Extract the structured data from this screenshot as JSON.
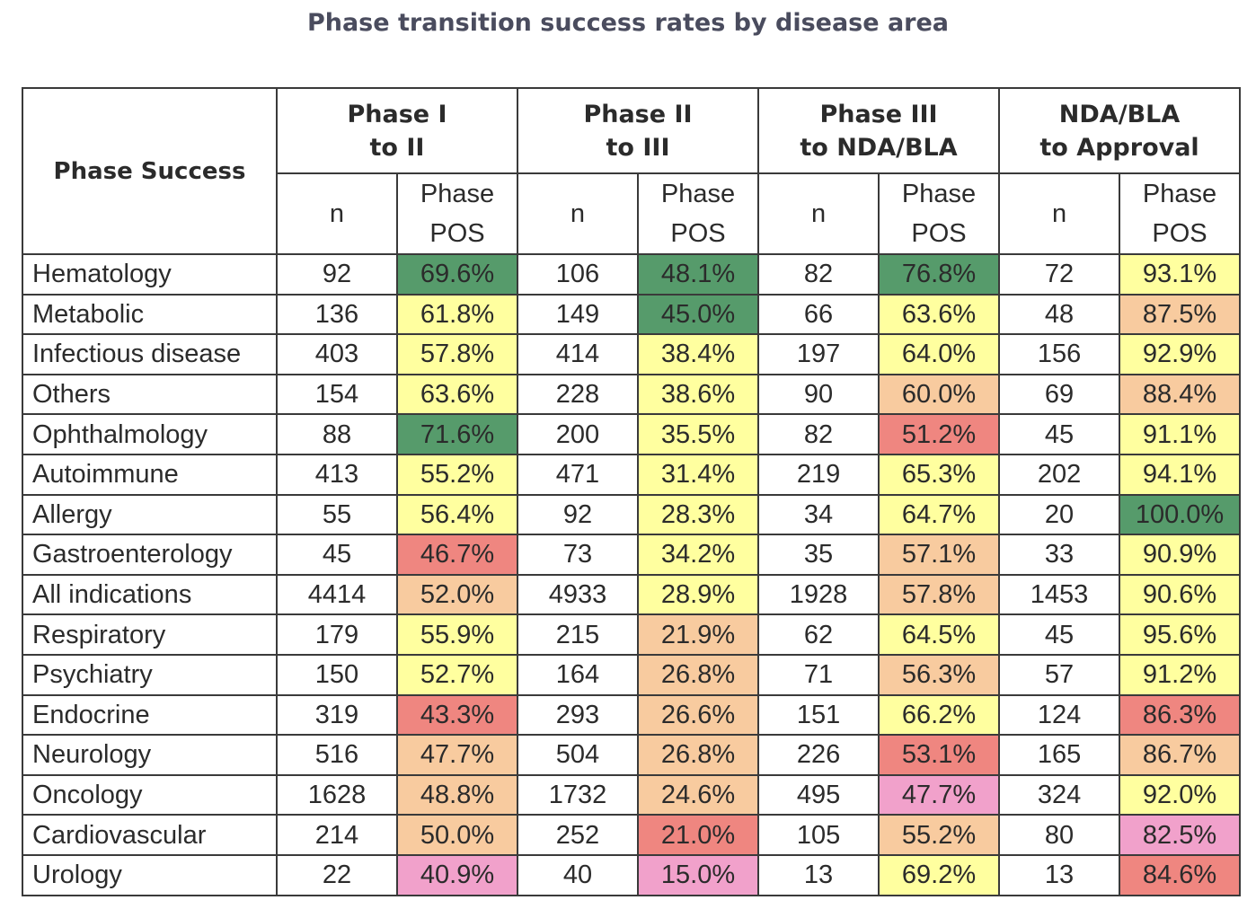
{
  "title": "Phase transition success rates by disease area",
  "palette": {
    "green": "#569b6b",
    "yellow": "#ffff9f",
    "peach": "#f8cb9f",
    "red": "#ef8680",
    "pink": "#f1a1cb"
  },
  "chart_data": {
    "type": "table",
    "title": "Phase transition success rates by disease area",
    "corner_header": "Phase Success",
    "groups": [
      {
        "line1": "Phase I",
        "line2": "to II"
      },
      {
        "line1": "Phase II",
        "line2": "to III"
      },
      {
        "line1": "Phase III",
        "line2": "to NDA/BLA"
      },
      {
        "line1": "NDA/BLA",
        "line2": "to Approval"
      }
    ],
    "sub_headers": {
      "n": "n",
      "pos_line1": "Phase",
      "pos_line2": "POS"
    },
    "rows": [
      {
        "label": "Hematology",
        "cells": [
          [
            "92",
            "69.6%",
            "green"
          ],
          [
            "106",
            "48.1%",
            "green"
          ],
          [
            "82",
            "76.8%",
            "green"
          ],
          [
            "72",
            "93.1%",
            "yellow"
          ]
        ]
      },
      {
        "label": "Metabolic",
        "cells": [
          [
            "136",
            "61.8%",
            "yellow"
          ],
          [
            "149",
            "45.0%",
            "green"
          ],
          [
            "66",
            "63.6%",
            "yellow"
          ],
          [
            "48",
            "87.5%",
            "peach"
          ]
        ]
      },
      {
        "label": "Infectious disease",
        "cells": [
          [
            "403",
            "57.8%",
            "yellow"
          ],
          [
            "414",
            "38.4%",
            "yellow"
          ],
          [
            "197",
            "64.0%",
            "yellow"
          ],
          [
            "156",
            "92.9%",
            "yellow"
          ]
        ]
      },
      {
        "label": "Others",
        "cells": [
          [
            "154",
            "63.6%",
            "yellow"
          ],
          [
            "228",
            "38.6%",
            "yellow"
          ],
          [
            "90",
            "60.0%",
            "peach"
          ],
          [
            "69",
            "88.4%",
            "peach"
          ]
        ]
      },
      {
        "label": "Ophthalmology",
        "cells": [
          [
            "88",
            "71.6%",
            "green"
          ],
          [
            "200",
            "35.5%",
            "yellow"
          ],
          [
            "82",
            "51.2%",
            "red"
          ],
          [
            "45",
            "91.1%",
            "yellow"
          ]
        ]
      },
      {
        "label": "Autoimmune",
        "cells": [
          [
            "413",
            "55.2%",
            "yellow"
          ],
          [
            "471",
            "31.4%",
            "yellow"
          ],
          [
            "219",
            "65.3%",
            "yellow"
          ],
          [
            "202",
            "94.1%",
            "yellow"
          ]
        ]
      },
      {
        "label": "Allergy",
        "cells": [
          [
            "55",
            "56.4%",
            "yellow"
          ],
          [
            "92",
            "28.3%",
            "yellow"
          ],
          [
            "34",
            "64.7%",
            "yellow"
          ],
          [
            "20",
            "100.0%",
            "green"
          ]
        ]
      },
      {
        "label": "Gastroenterology",
        "cells": [
          [
            "45",
            "46.7%",
            "red"
          ],
          [
            "73",
            "34.2%",
            "yellow"
          ],
          [
            "35",
            "57.1%",
            "peach"
          ],
          [
            "33",
            "90.9%",
            "yellow"
          ]
        ]
      },
      {
        "label": "All indications",
        "cells": [
          [
            "4414",
            "52.0%",
            "peach"
          ],
          [
            "4933",
            "28.9%",
            "yellow"
          ],
          [
            "1928",
            "57.8%",
            "peach"
          ],
          [
            "1453",
            "90.6%",
            "yellow"
          ]
        ]
      },
      {
        "label": "Respiratory",
        "cells": [
          [
            "179",
            "55.9%",
            "yellow"
          ],
          [
            "215",
            "21.9%",
            "peach"
          ],
          [
            "62",
            "64.5%",
            "yellow"
          ],
          [
            "45",
            "95.6%",
            "yellow"
          ]
        ]
      },
      {
        "label": "Psychiatry",
        "cells": [
          [
            "150",
            "52.7%",
            "yellow"
          ],
          [
            "164",
            "26.8%",
            "peach"
          ],
          [
            "71",
            "56.3%",
            "peach"
          ],
          [
            "57",
            "91.2%",
            "yellow"
          ]
        ]
      },
      {
        "label": "Endocrine",
        "cells": [
          [
            "319",
            "43.3%",
            "red"
          ],
          [
            "293",
            "26.6%",
            "peach"
          ],
          [
            "151",
            "66.2%",
            "yellow"
          ],
          [
            "124",
            "86.3%",
            "red"
          ]
        ]
      },
      {
        "label": "Neurology",
        "cells": [
          [
            "516",
            "47.7%",
            "peach"
          ],
          [
            "504",
            "26.8%",
            "peach"
          ],
          [
            "226",
            "53.1%",
            "red"
          ],
          [
            "165",
            "86.7%",
            "peach"
          ]
        ]
      },
      {
        "label": "Oncology",
        "cells": [
          [
            "1628",
            "48.8%",
            "peach"
          ],
          [
            "1732",
            "24.6%",
            "peach"
          ],
          [
            "495",
            "47.7%",
            "pink"
          ],
          [
            "324",
            "92.0%",
            "yellow"
          ]
        ]
      },
      {
        "label": "Cardiovascular",
        "cells": [
          [
            "214",
            "50.0%",
            "peach"
          ],
          [
            "252",
            "21.0%",
            "red"
          ],
          [
            "105",
            "55.2%",
            "peach"
          ],
          [
            "80",
            "82.5%",
            "pink"
          ]
        ]
      },
      {
        "label": "Urology",
        "cells": [
          [
            "22",
            "40.9%",
            "pink"
          ],
          [
            "40",
            "15.0%",
            "pink"
          ],
          [
            "13",
            "69.2%",
            "yellow"
          ],
          [
            "13",
            "84.6%",
            "red"
          ]
        ]
      }
    ]
  }
}
